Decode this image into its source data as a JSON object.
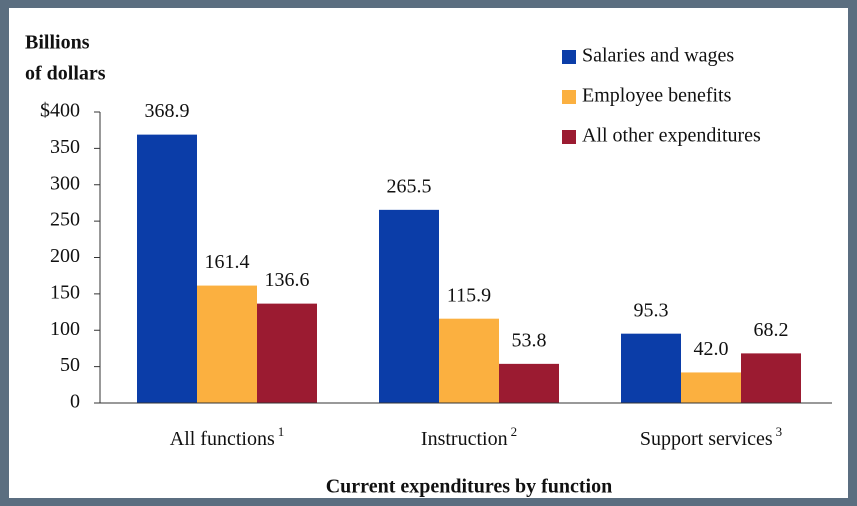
{
  "chart_data": {
    "type": "bar",
    "y_label_lines": [
      "Billions",
      "of dollars"
    ],
    "x_label": "Current expenditures by function",
    "categories": [
      "All functions",
      "Instruction",
      "Support services"
    ],
    "category_notes": [
      "1",
      "2",
      "3"
    ],
    "series": [
      {
        "name": "Salaries and wages",
        "color": "#0b3da8",
        "values": [
          368.9,
          265.5,
          95.3
        ],
        "value_labels": [
          "368.9",
          "265.5",
          "95.3"
        ]
      },
      {
        "name": "Employee benefits",
        "color": "#fbb040",
        "values": [
          161.4,
          115.9,
          42.0
        ],
        "value_labels": [
          "161.4",
          "115.9",
          "42.0"
        ]
      },
      {
        "name": "All other expenditures",
        "color": "#9b1b31",
        "values": [
          136.6,
          53.8,
          68.2
        ],
        "value_labels": [
          "136.6",
          "53.8",
          "68.2"
        ]
      }
    ],
    "ylim": [
      0,
      400
    ],
    "yticks": [
      0,
      50,
      100,
      150,
      200,
      250,
      300,
      350,
      {
        "value": 400,
        "label": "$400"
      }
    ],
    "legend": "upper right"
  }
}
